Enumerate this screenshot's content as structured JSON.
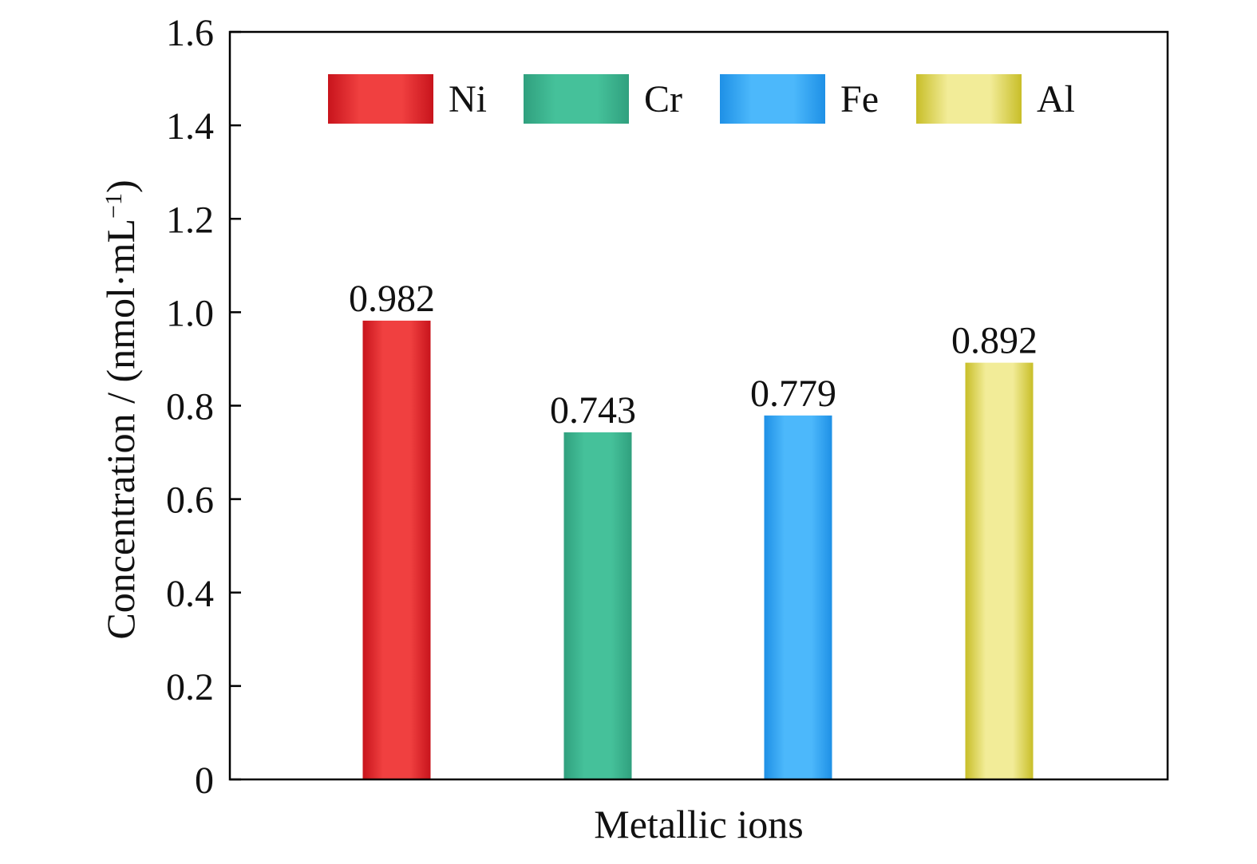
{
  "chart_data": {
    "type": "bar",
    "title": "",
    "xlabel": "Metallic ions",
    "ylabel": "Concentration / (nmol·mL",
    "ylabel_superscript": "−1",
    "ylabel_close": ")",
    "categories": [
      "Ni",
      "Cr",
      "Fe",
      "Al"
    ],
    "values": [
      0.982,
      0.743,
      0.779,
      0.892
    ],
    "value_labels": [
      "0.982",
      "0.743",
      "0.779",
      "0.892"
    ],
    "ylim": [
      0,
      1.6
    ],
    "yticks": [
      0,
      0.2,
      0.4,
      0.6,
      0.8,
      1.0,
      1.2,
      1.4,
      1.6
    ],
    "ytick_labels": [
      "0",
      "0.2",
      "0.4",
      "0.6",
      "0.8",
      "1.0",
      "1.2",
      "1.4",
      "1.6"
    ],
    "grid": false,
    "legend_position": "top",
    "legend": [
      "Ni",
      "Cr",
      "Fe",
      "Al"
    ],
    "colors": {
      "Ni": {
        "edge": "#c8141c",
        "mid": "#f04040"
      },
      "Cr": {
        "edge": "#30a07e",
        "mid": "#45c19a"
      },
      "Fe": {
        "edge": "#1e90e6",
        "mid": "#4cb8fb"
      },
      "Al": {
        "edge": "#c8be28",
        "mid": "#f2ec98"
      }
    }
  }
}
